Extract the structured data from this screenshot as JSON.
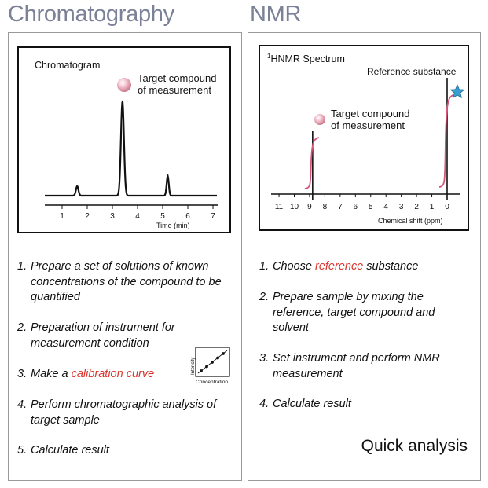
{
  "left": {
    "title": "Chromatography",
    "chart": {
      "label": "Chromatogram",
      "annotation": [
        "Target compound",
        "of measurement"
      ],
      "x_ticks": [
        "1",
        "2",
        "3",
        "4",
        "5",
        "6",
        "7"
      ],
      "x_label": "Time (min)",
      "peaks_min": [
        1.6,
        3.4,
        5.2
      ],
      "peak_color": "#f2b8c6"
    },
    "steps": [
      {
        "num": "1.",
        "parts": [
          "Prepare a set of solutions of known concentrations of the compound to be quantified"
        ]
      },
      {
        "num": "2.",
        "parts": [
          "Preparation of instrument for measurement condition"
        ]
      },
      {
        "num": "3.",
        "parts": [
          "Make a ",
          "calibration curve"
        ]
      },
      {
        "num": "4.",
        "parts": [
          "Perform chromatographic analysis of target sample"
        ]
      },
      {
        "num": "5.",
        "parts": [
          "Calculate result"
        ]
      }
    ],
    "calibration_icon": {
      "y_label": "Intensity",
      "x_label": "Concentration"
    }
  },
  "right": {
    "title": "NMR",
    "chart": {
      "label_sup": "1",
      "label": "HNMR Spectrum",
      "reference_label": "Reference substance",
      "annotation": [
        "Target compound",
        "of measurement"
      ],
      "x_ticks": [
        "11",
        "10",
        "9",
        "8",
        "7",
        "6",
        "5",
        "4",
        "3",
        "2",
        "1",
        "0"
      ],
      "x_label": "Chemical shift (ppm)",
      "target_shift_ppm": 8.8,
      "reference_shift_ppm": 0,
      "reference_marker": "star-icon",
      "reference_color": "#3a9fd0"
    },
    "steps": [
      {
        "num": "1.",
        "parts": [
          "Choose ",
          "reference",
          " substance"
        ]
      },
      {
        "num": "2.",
        "parts": [
          "Prepare sample by mixing the reference, target compound and solvent"
        ]
      },
      {
        "num": "3.",
        "parts": [
          "Set instrument and perform NMR measurement"
        ]
      },
      {
        "num": "4.",
        "parts": [
          "Calculate result"
        ]
      }
    ],
    "footer": "Quick analysis"
  }
}
